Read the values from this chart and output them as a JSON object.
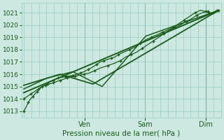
{
  "bg_color": "#cce8e0",
  "grid_color": "#99ccc4",
  "line_color": "#1a5c1a",
  "ylim": [
    1012.5,
    1021.8
  ],
  "yticks": [
    1013,
    1014,
    1015,
    1016,
    1017,
    1018,
    1019,
    1020,
    1021
  ],
  "xlabel": "Pression niveau de la mer( hPa )",
  "xtick_pos": [
    0.333,
    0.667,
    1.0
  ],
  "xtick_labels": [
    "Ven",
    "Sam",
    "Dim"
  ],
  "day_vlines": [
    0.333,
    0.667,
    1.0
  ],
  "xlim": [
    -0.01,
    1.08
  ],
  "series1_x": [
    0.0,
    0.012,
    0.025,
    0.037,
    0.05,
    0.062,
    0.075,
    0.087,
    0.1,
    0.115,
    0.13,
    0.145,
    0.16,
    0.175,
    0.19,
    0.21,
    0.23,
    0.25,
    0.27,
    0.29,
    0.31,
    0.33,
    0.355,
    0.38,
    0.4,
    0.42,
    0.44,
    0.46,
    0.48,
    0.5,
    0.52,
    0.55,
    0.58,
    0.61,
    0.64,
    0.67,
    0.7,
    0.73,
    0.76,
    0.79,
    0.82,
    0.85,
    0.88,
    0.91,
    0.94,
    0.97,
    1.0,
    1.03,
    1.06
  ],
  "series1_y": [
    1013.0,
    1013.3,
    1013.7,
    1014.0,
    1014.2,
    1014.4,
    1014.6,
    1014.8,
    1015.0,
    1015.1,
    1015.2,
    1015.4,
    1015.5,
    1015.6,
    1015.7,
    1015.75,
    1015.8,
    1015.85,
    1015.9,
    1016.0,
    1016.1,
    1016.2,
    1016.4,
    1016.6,
    1016.8,
    1017.0,
    1017.1,
    1017.2,
    1017.3,
    1017.4,
    1017.6,
    1017.8,
    1018.0,
    1018.2,
    1018.5,
    1018.8,
    1019.0,
    1019.2,
    1019.4,
    1019.6,
    1019.8,
    1020.1,
    1020.4,
    1020.7,
    1021.0,
    1021.2,
    1021.1,
    1020.9,
    1021.2
  ],
  "series2_x": [
    0.0,
    0.02,
    0.04,
    0.06,
    0.08,
    0.1,
    0.12,
    0.14,
    0.16,
    0.18,
    0.2,
    0.22,
    0.24,
    0.26,
    0.28,
    0.3,
    0.33,
    0.36,
    0.39,
    0.42,
    0.46,
    0.5,
    0.53,
    0.56,
    0.59,
    0.62,
    0.65,
    0.68,
    0.71,
    0.74,
    0.77,
    0.8,
    0.83,
    0.86,
    0.89,
    0.92,
    0.95,
    0.98,
    1.01,
    1.04,
    1.07
  ],
  "series2_y": [
    1014.0,
    1014.2,
    1014.4,
    1014.6,
    1014.8,
    1015.0,
    1015.1,
    1015.2,
    1015.3,
    1015.4,
    1015.5,
    1015.6,
    1015.7,
    1015.8,
    1015.85,
    1015.9,
    1016.0,
    1016.1,
    1016.3,
    1016.5,
    1016.7,
    1016.9,
    1017.1,
    1017.4,
    1017.6,
    1017.8,
    1018.1,
    1018.4,
    1018.7,
    1019.0,
    1019.3,
    1019.6,
    1019.8,
    1020.0,
    1020.3,
    1020.5,
    1020.8,
    1021.0,
    1021.1,
    1020.9,
    1021.2
  ],
  "trend1_x": [
    0.0,
    1.07
  ],
  "trend1_y": [
    1014.5,
    1021.2
  ],
  "trend2_x": [
    0.0,
    0.2,
    0.38,
    1.07
  ],
  "trend2_y": [
    1015.1,
    1016.0,
    1015.2,
    1021.2
  ],
  "trend3_x": [
    0.0,
    0.13,
    0.27,
    0.43,
    0.67,
    1.07
  ],
  "trend3_y": [
    1014.8,
    1015.7,
    1016.2,
    1015.0,
    1019.1,
    1021.2
  ]
}
